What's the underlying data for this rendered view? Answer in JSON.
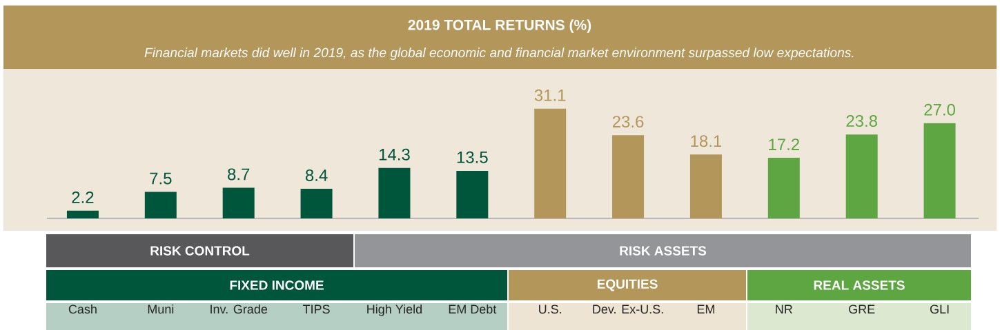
{
  "chart_data": {
    "type": "bar",
    "title": "2019 TOTAL RETURNS (%)",
    "subtitle": "Financial markets did well in 2019, as the global economic and financial market environment surpassed low expectations.",
    "categories": [
      "Cash",
      "Muni",
      "Inv. Grade",
      "TIPS",
      "High Yield",
      "EM Debt",
      "U.S.",
      "Dev. Ex-U.S.",
      "EM",
      "NR",
      "GRE",
      "GLI"
    ],
    "values": [
      2.2,
      7.5,
      8.7,
      8.4,
      14.3,
      13.5,
      31.1,
      23.6,
      18.1,
      17.2,
      23.8,
      27.0
    ],
    "colors": [
      "#00563a",
      "#00563a",
      "#00563a",
      "#00563a",
      "#00563a",
      "#00563a",
      "#b3965a",
      "#b3965a",
      "#b3965a",
      "#5ea642",
      "#5ea642",
      "#5ea642"
    ],
    "value_labels": [
      "2.2",
      "7.5",
      "8.7",
      "8.4",
      "14.3",
      "13.5",
      "31.1",
      "23.6",
      "18.1",
      "17.2",
      "23.8",
      "27.0"
    ],
    "tick_labels": "x",
    "annotations": [
      "RISK CONTROL",
      "RISK ASSETS",
      "FIXED INCOME",
      "EQUITIES",
      "REAL ASSETS"
    ]
  }
}
